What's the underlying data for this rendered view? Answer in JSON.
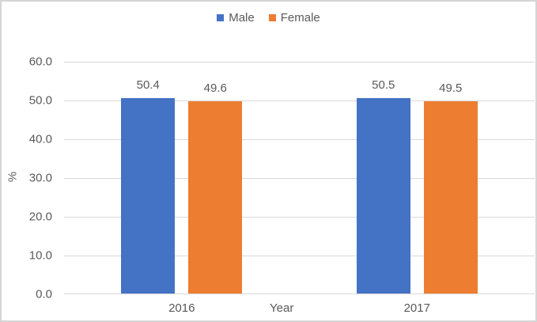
{
  "chart_data": {
    "type": "bar",
    "title": "",
    "categories": [
      "2016",
      "2017"
    ],
    "series": [
      {
        "name": "Male",
        "color": "#4472C4",
        "values": [
          50.4,
          50.5
        ]
      },
      {
        "name": "Female",
        "color": "#ED7D31",
        "values": [
          49.6,
          49.5
        ]
      }
    ],
    "xlabel": "Year",
    "ylabel": "%",
    "ylim": [
      0,
      60
    ],
    "ytick_step": 10,
    "ytick_decimals": 1,
    "data_label_decimals": 1,
    "grid": true,
    "legend_position": "top center",
    "data_labels": true
  },
  "colors": {
    "background": "#FFFFFF",
    "border": "#D5D5D5",
    "gridline": "#D9D9D9",
    "axis_line": "#D9D9D9",
    "text": "#595959",
    "male_bar": "#4472C4",
    "female_bar": "#ED7D31"
  }
}
